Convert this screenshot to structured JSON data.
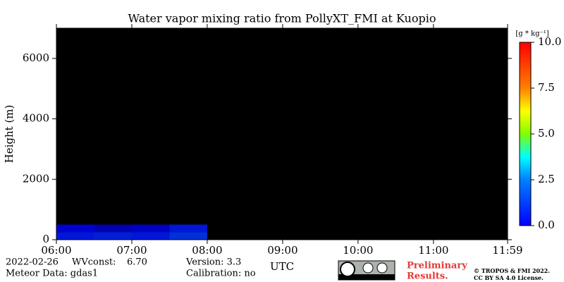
{
  "chart_data": {
    "type": "heatmap",
    "title": "Water vapor mixing ratio from PollyXT_FMI at Kuopio",
    "x_label": "UTC",
    "y_label": "Height (m)",
    "colorbar_label": "[g * kg⁻¹]",
    "xlim": [
      6,
      11.9833
    ],
    "ylim": [
      0,
      7000
    ],
    "xticks": [
      {
        "value": 6,
        "label": "06:00"
      },
      {
        "value": 7,
        "label": "07:00"
      },
      {
        "value": 8,
        "label": "08:00"
      },
      {
        "value": 9,
        "label": "09:00"
      },
      {
        "value": 10,
        "label": "10:00"
      },
      {
        "value": 11,
        "label": "11:00"
      },
      {
        "value": 11.9833,
        "label": "11:59"
      }
    ],
    "yticks": [
      0,
      2000,
      4000,
      6000
    ],
    "zlim": [
      0,
      10
    ],
    "zticks": [
      {
        "value": 0,
        "label": "0.0"
      },
      {
        "value": 2.5,
        "label": "2.5"
      },
      {
        "value": 5,
        "label": "5.0"
      },
      {
        "value": 7.5,
        "label": "7.5"
      },
      {
        "value": 10,
        "label": "10.0"
      }
    ],
    "xbins": [
      6,
      6.5,
      7,
      7.5,
      8
    ],
    "ybins": [
      0,
      250,
      500
    ],
    "values": [
      [
        1.5,
        1.6,
        1.5,
        1.8
      ],
      [
        1.2,
        0.8,
        1.0,
        1.5
      ]
    ],
    "footer": {
      "date": "2022-02-26",
      "wvconst_label": "WVconst:",
      "wvconst": "6.70",
      "meteor": "Meteor Data: gdas1",
      "version": "Version: 3.3",
      "calibration": "Calibration: no",
      "prelim_1": "Preliminary",
      "prelim_2": "Results.",
      "copyright_1": "© TROPOS & FMI 2022.",
      "copyright_2": "CC BY SA 4.0 License."
    }
  }
}
